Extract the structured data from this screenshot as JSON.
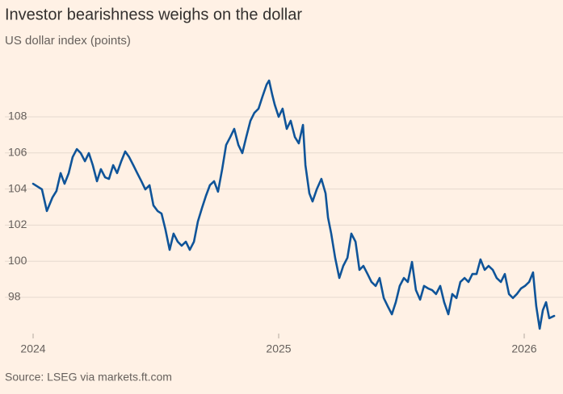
{
  "chart_data": {
    "type": "line",
    "title": "Investor bearishness weighs on the dollar",
    "subtitle": "US dollar index (points)",
    "source": "Source: LSEG via markets.ft.com",
    "grid": true,
    "xlim": [
      2024,
      2026.13
    ],
    "xticks": [
      2024,
      2025,
      2026
    ],
    "ylim": [
      96,
      110.4
    ],
    "yticks": [
      98,
      100,
      102,
      104,
      106,
      108
    ],
    "x": [
      2024.0,
      2024.036,
      2024.056,
      2024.079,
      2024.095,
      2024.112,
      2024.128,
      2024.145,
      2024.161,
      2024.178,
      2024.194,
      2024.211,
      2024.227,
      2024.243,
      2024.26,
      2024.276,
      2024.293,
      2024.309,
      2024.326,
      2024.342,
      2024.359,
      2024.375,
      2024.391,
      2024.408,
      2024.424,
      2024.441,
      2024.457,
      2024.474,
      2024.49,
      2024.507,
      2024.523,
      2024.539,
      2024.556,
      2024.572,
      2024.589,
      2024.605,
      2024.622,
      2024.638,
      2024.655,
      2024.671,
      2024.688,
      2024.704,
      2024.72,
      2024.737,
      2024.753,
      2024.77,
      2024.786,
      2024.803,
      2024.819,
      2024.836,
      2024.852,
      2024.868,
      2024.885,
      2024.901,
      2024.918,
      2024.934,
      2024.951,
      2024.961,
      2024.974,
      2024.984,
      2025.0,
      2025.016,
      2025.033,
      2025.049,
      2025.066,
      2025.082,
      2025.099,
      2025.109,
      2025.125,
      2025.138,
      2025.155,
      2025.174,
      2025.191,
      2025.201,
      2025.214,
      2025.23,
      2025.247,
      2025.263,
      2025.28,
      2025.296,
      2025.313,
      2025.329,
      2025.345,
      2025.362,
      2025.378,
      2025.395,
      2025.411,
      2025.428,
      2025.444,
      2025.461,
      2025.477,
      2025.493,
      2025.51,
      2025.526,
      2025.543,
      2025.559,
      2025.576,
      2025.592,
      2025.609,
      2025.625,
      2025.641,
      2025.658,
      2025.674,
      2025.691,
      2025.707,
      2025.724,
      2025.74,
      2025.757,
      2025.773,
      2025.789,
      2025.806,
      2025.822,
      2025.839,
      2025.855,
      2025.872,
      2025.888,
      2025.905,
      2025.921,
      2025.938,
      2025.954,
      2025.97,
      2025.987,
      2026.003,
      2026.02,
      2026.036,
      2026.049,
      2026.063,
      2026.076,
      2026.089,
      2026.102,
      2026.122
    ],
    "series": [
      {
        "name": "US dollar index",
        "color": "#0f5499",
        "values": [
          104.29,
          103.98,
          102.78,
          103.54,
          103.89,
          104.88,
          104.29,
          104.88,
          105.77,
          106.21,
          105.99,
          105.54,
          105.99,
          105.32,
          104.43,
          105.1,
          104.65,
          104.56,
          105.32,
          104.88,
          105.54,
          106.08,
          105.77,
          105.32,
          104.88,
          104.43,
          103.98,
          104.21,
          103.09,
          102.78,
          102.64,
          101.75,
          100.63,
          101.53,
          101.08,
          100.86,
          101.08,
          100.63,
          101.08,
          102.2,
          102.96,
          103.63,
          104.21,
          104.43,
          103.85,
          105.1,
          106.44,
          106.88,
          107.33,
          106.44,
          105.99,
          106.88,
          107.78,
          108.22,
          108.45,
          109.12,
          109.79,
          110.01,
          109.21,
          108.67,
          108.0,
          108.45,
          107.33,
          107.78,
          106.88,
          106.53,
          107.55,
          105.32,
          103.76,
          103.31,
          103.98,
          104.56,
          103.76,
          102.42,
          101.53,
          100.19,
          99.07,
          99.74,
          100.19,
          101.53,
          101.08,
          99.52,
          99.74,
          99.29,
          98.85,
          98.63,
          99.07,
          97.96,
          97.51,
          97.06,
          97.73,
          98.63,
          99.07,
          98.85,
          99.96,
          98.4,
          97.87,
          98.63,
          98.49,
          98.4,
          98.18,
          98.63,
          97.73,
          97.06,
          98.18,
          97.96,
          98.85,
          99.07,
          98.85,
          99.29,
          99.29,
          100.1,
          99.52,
          99.74,
          99.52,
          99.07,
          98.85,
          99.29,
          98.18,
          97.96,
          98.18,
          98.49,
          98.63,
          98.85,
          99.38,
          97.51,
          96.26,
          97.29,
          97.73,
          96.84,
          96.97
        ]
      }
    ]
  }
}
